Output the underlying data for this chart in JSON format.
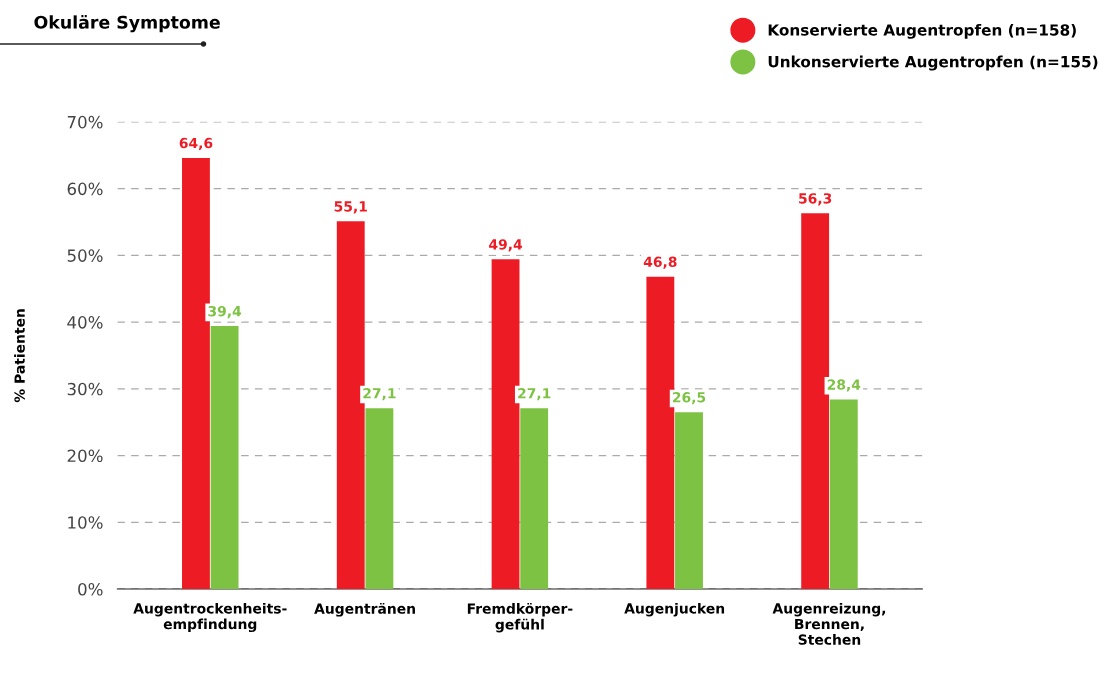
{
  "chart_data": {
    "type": "bar",
    "title": "Okuläre Symptome",
    "ylabel": "% Patienten",
    "categories": [
      "Augentrockenheits-\nempfindung",
      "Augentränen",
      "Fremdkörper-\ngefühl",
      "Augenjucken",
      "Augenreizung,\nBrennen,\nStechen"
    ],
    "series": [
      {
        "name": "Konservierte Augentropfen (n=158)",
        "color": "#ed1c24",
        "values": [
          64.6,
          55.1,
          49.4,
          46.8,
          56.3
        ],
        "value_labels": [
          "64,6",
          "55,1",
          "49,4",
          "46,8",
          "56,3"
        ]
      },
      {
        "name": "Unkonservierte Augentropfen (n=155)",
        "color": "#7dc242",
        "values": [
          39.4,
          27.1,
          27.1,
          26.5,
          28.4
        ],
        "value_labels": [
          "39,4",
          "27,1",
          "27,1",
          "26,5",
          "28,4"
        ]
      }
    ],
    "ylim": [
      0,
      70
    ],
    "yticks": [
      {
        "value": 0,
        "label": "0%"
      },
      {
        "value": 10,
        "label": "10%"
      },
      {
        "value": 20,
        "label": "20%"
      },
      {
        "value": 30,
        "label": "30%"
      },
      {
        "value": 40,
        "label": "40%"
      },
      {
        "value": 50,
        "label": "50%"
      },
      {
        "value": 60,
        "label": "60%"
      },
      {
        "value": 70,
        "label": "70%"
      }
    ],
    "grid": "y",
    "legend": "top right"
  }
}
